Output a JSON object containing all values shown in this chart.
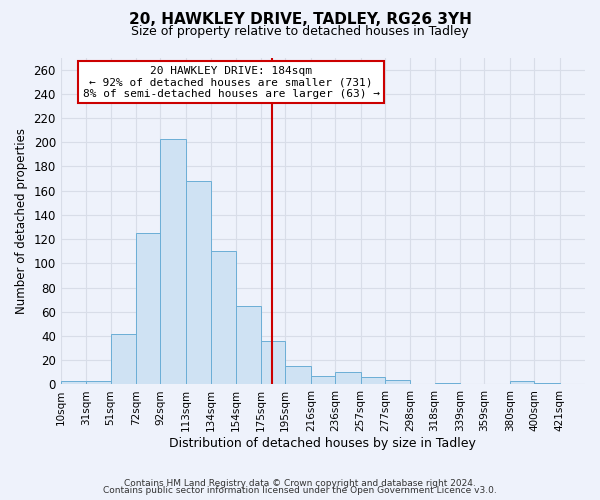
{
  "title": "20, HAWKLEY DRIVE, TADLEY, RG26 3YH",
  "subtitle": "Size of property relative to detached houses in Tadley",
  "xlabel": "Distribution of detached houses by size in Tadley",
  "ylabel": "Number of detached properties",
  "bin_labels": [
    "10sqm",
    "31sqm",
    "51sqm",
    "72sqm",
    "92sqm",
    "113sqm",
    "134sqm",
    "154sqm",
    "175sqm",
    "195sqm",
    "216sqm",
    "236sqm",
    "257sqm",
    "277sqm",
    "298sqm",
    "318sqm",
    "339sqm",
    "359sqm",
    "380sqm",
    "400sqm",
    "421sqm"
  ],
  "bin_edges": [
    10,
    31,
    51,
    72,
    92,
    113,
    134,
    154,
    175,
    195,
    216,
    236,
    257,
    277,
    298,
    318,
    339,
    359,
    380,
    400,
    421
  ],
  "bar_heights": [
    3,
    3,
    42,
    125,
    203,
    168,
    110,
    65,
    36,
    15,
    7,
    10,
    6,
    4,
    0,
    1,
    0,
    0,
    3,
    1,
    0
  ],
  "bar_color": "#cfe2f3",
  "bar_edge_color": "#6baed6",
  "vline_x": 184,
  "vline_color": "#cc0000",
  "annotation_title": "20 HAWKLEY DRIVE: 184sqm",
  "annotation_line1": "← 92% of detached houses are smaller (731)",
  "annotation_line2": "8% of semi-detached houses are larger (63) →",
  "annotation_box_color": "#cc0000",
  "ylim": [
    0,
    270
  ],
  "yticks": [
    0,
    20,
    40,
    60,
    80,
    100,
    120,
    140,
    160,
    180,
    200,
    220,
    240,
    260
  ],
  "background_color": "#eef2fb",
  "grid_color": "#d8dde8",
  "footer1": "Contains HM Land Registry data © Crown copyright and database right 2024.",
  "footer2": "Contains public sector information licensed under the Open Government Licence v3.0."
}
